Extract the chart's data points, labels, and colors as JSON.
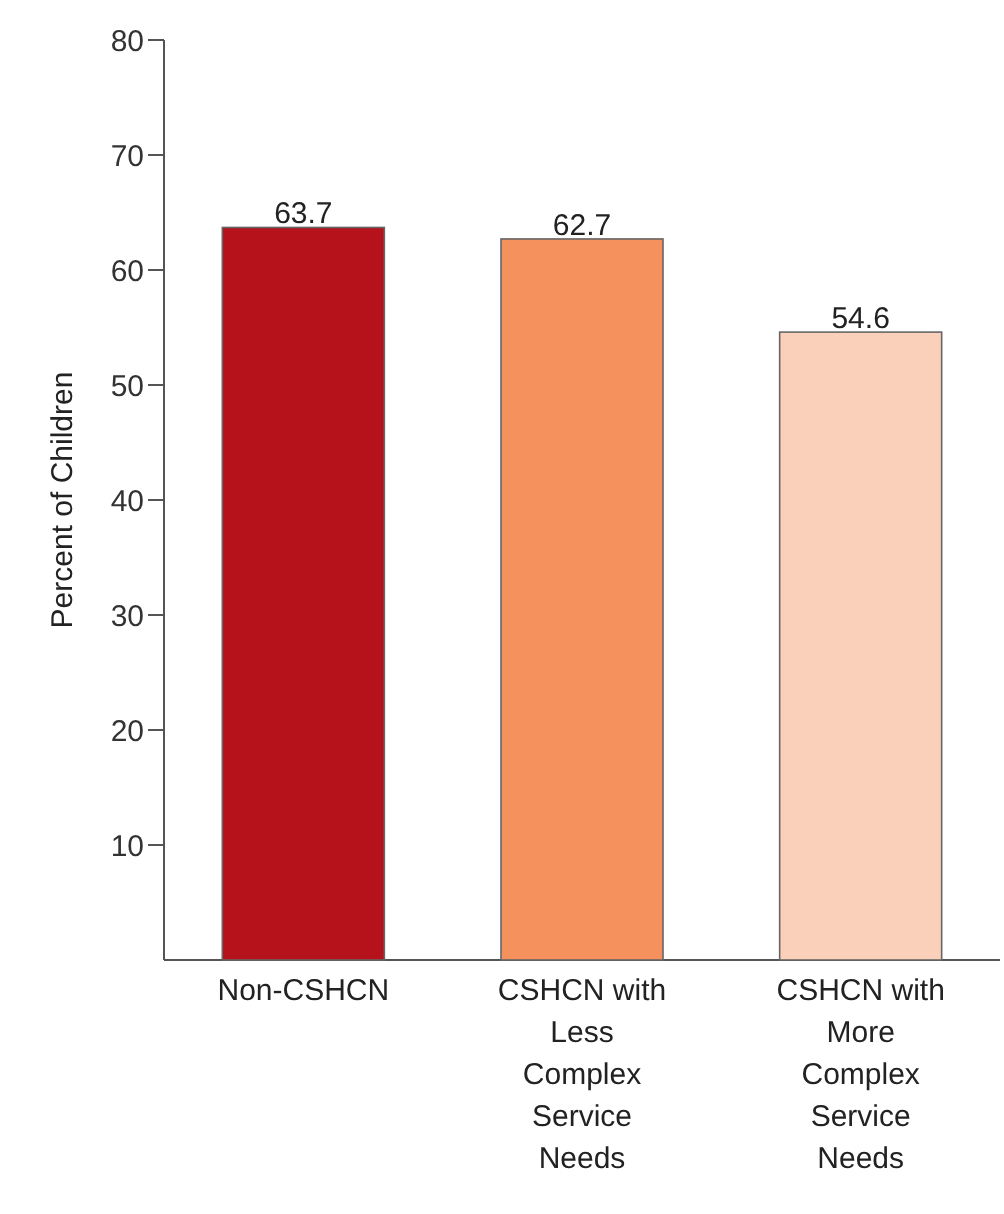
{
  "chart_data": {
    "type": "bar",
    "ylabel": "Percent of Children",
    "categories": [
      "Non-CSHCN",
      "CSHCN with Less Complex Service Needs",
      "CSHCN with More Complex Service Needs"
    ],
    "values": [
      63.7,
      62.7,
      54.6
    ],
    "colors": [
      "#b5121b",
      "#f4915c",
      "#fbd0bb"
    ],
    "ylim": [
      0,
      80
    ],
    "yticks": [
      10,
      20,
      30,
      40,
      50,
      60,
      70,
      80
    ],
    "grid": false,
    "data_labels": true
  }
}
